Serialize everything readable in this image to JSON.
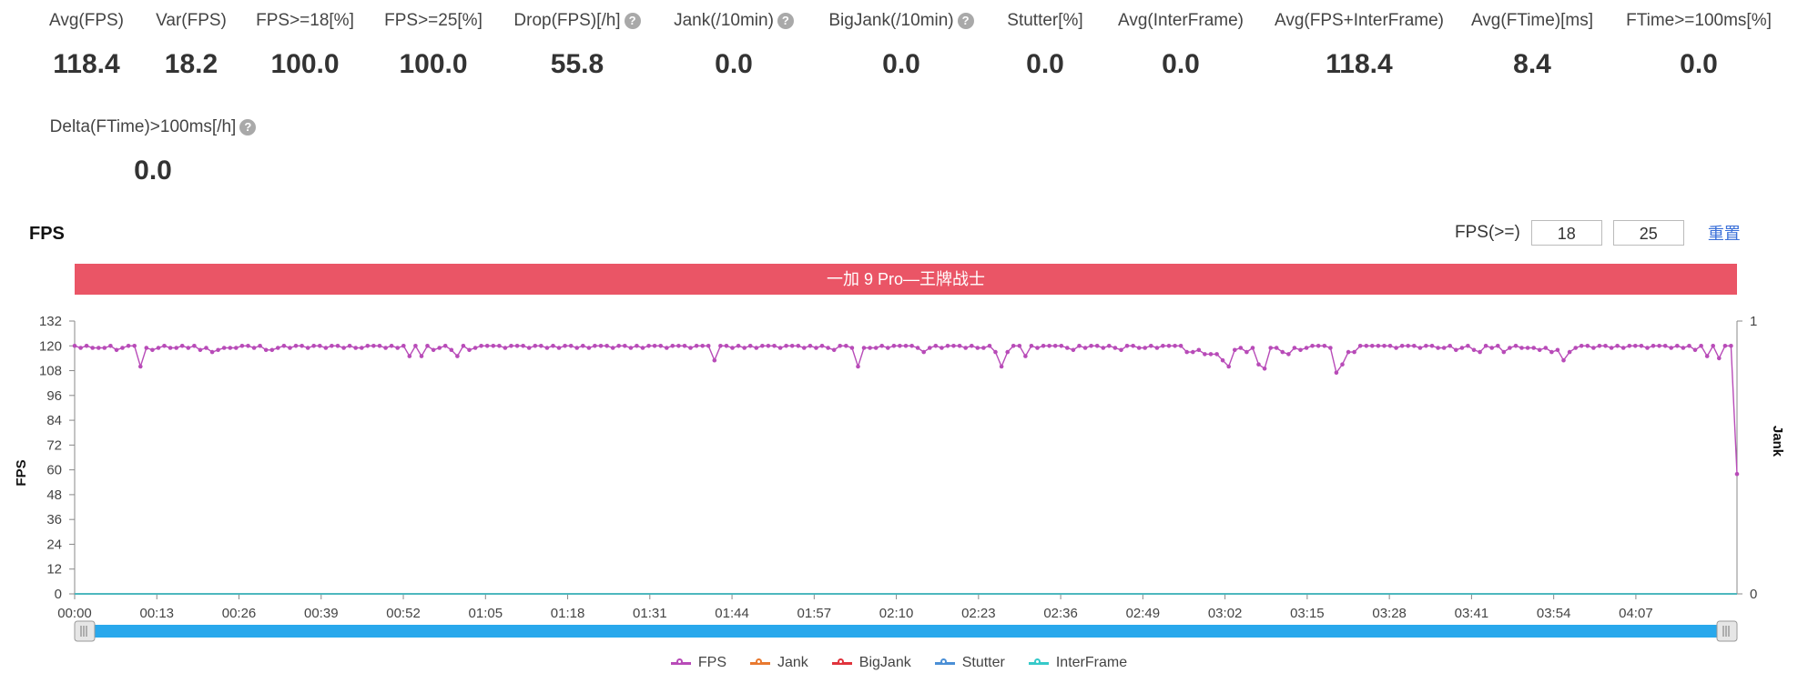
{
  "stats_row1": [
    {
      "label": "Avg(FPS)",
      "value": "118.4",
      "help": false
    },
    {
      "label": "Var(FPS)",
      "value": "18.2",
      "help": false
    },
    {
      "label": "FPS>=18[%]",
      "value": "100.0",
      "help": false
    },
    {
      "label": "FPS>=25[%]",
      "value": "100.0",
      "help": false
    },
    {
      "label": "Drop(FPS)[/h]",
      "value": "55.8",
      "help": true
    },
    {
      "label": "Jank(/10min)",
      "value": "0.0",
      "help": true
    },
    {
      "label": "BigJank(/10min)",
      "value": "0.0",
      "help": true
    },
    {
      "label": "Stutter[%]",
      "value": "0.0",
      "help": false
    },
    {
      "label": "Avg(InterFrame)",
      "value": "0.0",
      "help": false
    },
    {
      "label": "Avg(FPS+InterFrame)",
      "value": "118.4",
      "help": false
    },
    {
      "label": "Avg(FTime)[ms]",
      "value": "8.4",
      "help": false
    },
    {
      "label": "FTime>=100ms[%]",
      "value": "0.0",
      "help": false
    }
  ],
  "stats_row2": [
    {
      "label": "Delta(FTime)>100ms[/h]",
      "value": "0.0",
      "help": true
    }
  ],
  "help_glyph": "?",
  "chart_title": "FPS",
  "fps_filter": {
    "label": "FPS(>=)",
    "low": "18",
    "high": "25",
    "reset_label": "重置"
  },
  "banner_text": "一加 9 Pro—王牌战士",
  "chart_data": {
    "type": "line",
    "title": "FPS",
    "ylabel": "FPS",
    "y2label": "Jank",
    "ylim": [
      0,
      132
    ],
    "y2lim": [
      0,
      1
    ],
    "yticks": [
      0,
      12,
      24,
      36,
      48,
      60,
      72,
      84,
      96,
      108,
      120,
      132
    ],
    "y2ticks": [
      0,
      1
    ],
    "xticks": [
      "00:00",
      "00:13",
      "00:26",
      "00:39",
      "00:52",
      "01:05",
      "01:18",
      "01:31",
      "01:44",
      "01:57",
      "02:10",
      "02:23",
      "02:36",
      "02:49",
      "03:02",
      "03:15",
      "03:28",
      "03:41",
      "03:54",
      "04:07"
    ],
    "xrange_seconds": [
      0,
      263
    ],
    "series": [
      {
        "name": "FPS",
        "color": "#b84bb8",
        "values": [
          120,
          119,
          120,
          119,
          119,
          119,
          120,
          118,
          119,
          120,
          120,
          110,
          119,
          118,
          119,
          120,
          119,
          119,
          120,
          119,
          120,
          118,
          119,
          117,
          118,
          119,
          119,
          119,
          120,
          120,
          119,
          120,
          118,
          118,
          119,
          120,
          119,
          120,
          120,
          119,
          120,
          120,
          119,
          120,
          120,
          119,
          120,
          119,
          119,
          120,
          120,
          120,
          119,
          120,
          119,
          120,
          115,
          120,
          115,
          120,
          118,
          119,
          120,
          118,
          115,
          120,
          118,
          119,
          120,
          120,
          120,
          120,
          119,
          120,
          120,
          120,
          119,
          120,
          120,
          119,
          120,
          119,
          120,
          120,
          119,
          120,
          119,
          120,
          120,
          120,
          119,
          120,
          120,
          119,
          120,
          119,
          120,
          120,
          120,
          119,
          120,
          120,
          120,
          119,
          120,
          120,
          120,
          113,
          120,
          120,
          119,
          120,
          119,
          120,
          119,
          120,
          120,
          120,
          119,
          120,
          120,
          120,
          119,
          120,
          119,
          120,
          119,
          118,
          120,
          120,
          119,
          110,
          119,
          119,
          119,
          120,
          119,
          120,
          120,
          120,
          120,
          119,
          117,
          119,
          120,
          119,
          120,
          120,
          120,
          119,
          120,
          119,
          119,
          120,
          117,
          110,
          117,
          120,
          120,
          115,
          120,
          119,
          120,
          120,
          120,
          120,
          119,
          118,
          120,
          119,
          120,
          120,
          119,
          120,
          119,
          118,
          120,
          120,
          119,
          119,
          120,
          119,
          120,
          120,
          120,
          120,
          117,
          117,
          118,
          116,
          116,
          116,
          113,
          110,
          118,
          119,
          117,
          119,
          111,
          109,
          119,
          119,
          117,
          116,
          119,
          118,
          119,
          120,
          120,
          120,
          119,
          107,
          111,
          117,
          117,
          120,
          120,
          120,
          120,
          120,
          120,
          119,
          120,
          120,
          120,
          119,
          120,
          120,
          119,
          119,
          120,
          118,
          119,
          120,
          118,
          117,
          120,
          119,
          120,
          117,
          119,
          120,
          119,
          119,
          119,
          118,
          119,
          117,
          118,
          113,
          117,
          119,
          120,
          120,
          119,
          120,
          120,
          119,
          120,
          119,
          120,
          120,
          120,
          119,
          120,
          120,
          120,
          119,
          120,
          119,
          120,
          118,
          120,
          115,
          120,
          114,
          120,
          120,
          58
        ]
      },
      {
        "name": "Jank",
        "color": "#e8792f",
        "values": [
          0
        ]
      },
      {
        "name": "BigJank",
        "color": "#e0333c",
        "values": [
          0
        ]
      },
      {
        "name": "Stutter",
        "color": "#4b8fd6",
        "values": [
          0
        ]
      },
      {
        "name": "InterFrame",
        "color": "#35c9c9",
        "values": [
          0
        ]
      }
    ],
    "legend_position": "bottom",
    "grid": false
  }
}
